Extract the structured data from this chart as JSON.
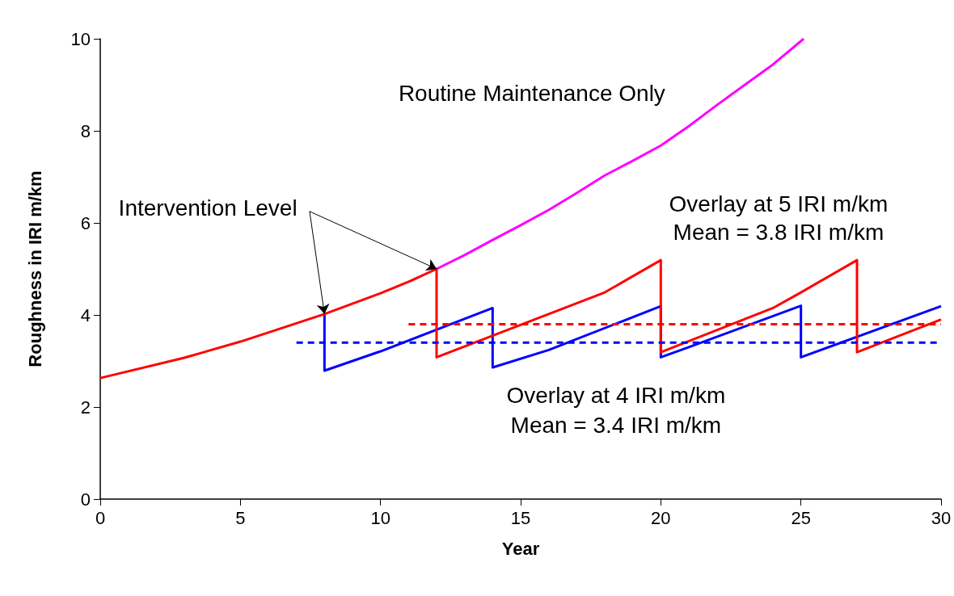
{
  "chart_data": {
    "type": "line",
    "xlabel": "Year",
    "ylabel": "Roughness in IRI m/km",
    "xlim": [
      0,
      30
    ],
    "xticks": [
      0,
      5,
      10,
      15,
      20,
      25,
      30
    ],
    "ylim": [
      0,
      10
    ],
    "yticks": [
      0,
      2,
      4,
      6,
      8,
      10
    ],
    "marker": "none",
    "series": [
      {
        "name": "Routine Maintenance Only",
        "color": "#ff00ff",
        "x": [
          12,
          13,
          14,
          15,
          16,
          17,
          18,
          19,
          20,
          21,
          22,
          23,
          24,
          25.1
        ],
        "values": [
          5.0,
          5.3,
          5.63,
          5.95,
          6.28,
          6.65,
          7.03,
          7.35,
          7.68,
          8.1,
          8.56,
          9.0,
          9.44,
          10
        ]
      },
      {
        "name": "Overlay at 4 IRI m/km",
        "color": "#0000ff",
        "x": [
          8,
          8,
          10,
          14,
          14,
          16,
          20,
          20,
          21,
          25,
          25,
          30
        ],
        "values": [
          4.02,
          2.79,
          3.21,
          4.15,
          2.86,
          3.24,
          4.19,
          3.08,
          3.3,
          4.2,
          3.08,
          4.19
        ]
      },
      {
        "name": "Overlay at 5 IRI m/km",
        "color": "#ff0000",
        "x": [
          0,
          3,
          5,
          8,
          10,
          11,
          12,
          12,
          14,
          18,
          20,
          20,
          24,
          25,
          27,
          27,
          30
        ],
        "values": [
          2.63,
          3.07,
          3.42,
          4.02,
          4.47,
          4.72,
          5.0,
          3.08,
          3.55,
          4.49,
          5.19,
          3.19,
          4.15,
          4.49,
          5.19,
          3.19,
          3.9
        ]
      },
      {
        "color": "#0000ff",
        "line_style": "dashed",
        "x": [
          7,
          30
        ],
        "values": [
          3.4,
          3.4
        ]
      },
      {
        "color": "#ff0000",
        "line_style": "dashed",
        "x": [
          11,
          30
        ],
        "values": [
          3.8,
          3.8
        ]
      }
    ],
    "annotations": [
      {
        "text": "Intervention Level",
        "x": 8,
        "y": 4.02
      },
      "Mean = 3.4 IRI m/km",
      "Mean = 3.8 IRI m/km"
    ]
  }
}
